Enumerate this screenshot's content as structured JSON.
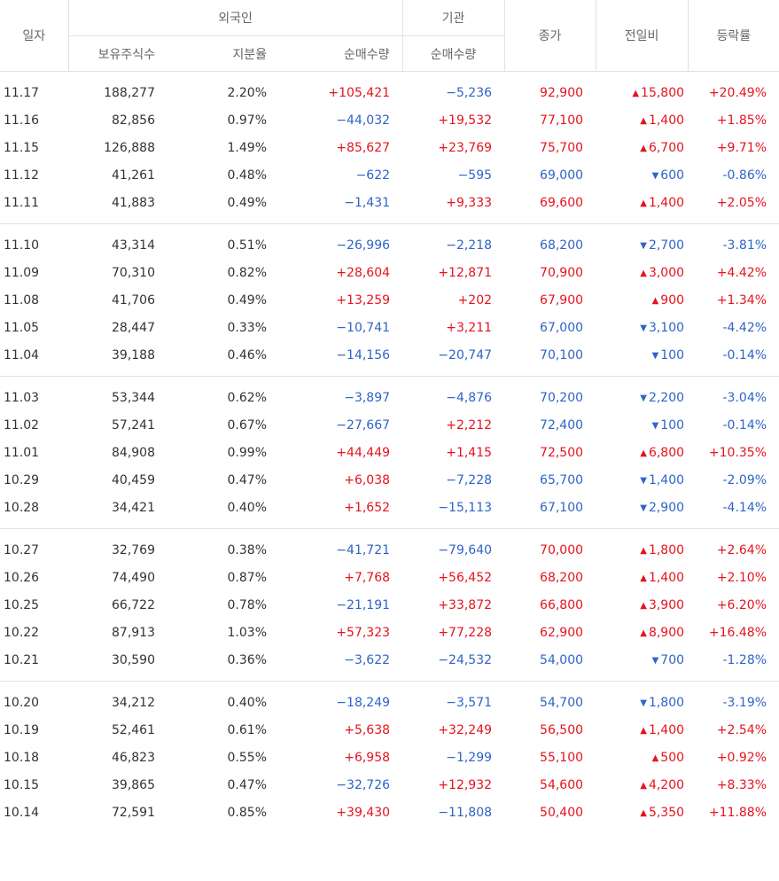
{
  "headers": {
    "date": "일자",
    "foreign": "외국인",
    "institution": "기관",
    "holdings": "보유주식수",
    "ratio": "지분율",
    "foreign_net": "순매수량",
    "inst_net": "순매수량",
    "close": "종가",
    "change": "전일비",
    "rate": "등락률"
  },
  "rows": [
    {
      "date": "11.17",
      "holdings": "188,277",
      "ratio": "2.20%",
      "fnet": "+105,421",
      "inet": "−5,236",
      "close": "92,900",
      "dir": "up",
      "change": "15,800",
      "rate": "+20.49%"
    },
    {
      "date": "11.16",
      "holdings": "82,856",
      "ratio": "0.97%",
      "fnet": "−44,032",
      "inet": "+19,532",
      "close": "77,100",
      "dir": "up",
      "change": "1,400",
      "rate": "+1.85%"
    },
    {
      "date": "11.15",
      "holdings": "126,888",
      "ratio": "1.49%",
      "fnet": "+85,627",
      "inet": "+23,769",
      "close": "75,700",
      "dir": "up",
      "change": "6,700",
      "rate": "+9.71%"
    },
    {
      "date": "11.12",
      "holdings": "41,261",
      "ratio": "0.48%",
      "fnet": "−622",
      "inet": "−595",
      "close": "69,000",
      "dir": "down",
      "change": "600",
      "rate": "-0.86%"
    },
    {
      "date": "11.11",
      "holdings": "41,883",
      "ratio": "0.49%",
      "fnet": "−1,431",
      "inet": "+9,333",
      "close": "69,600",
      "dir": "up",
      "change": "1,400",
      "rate": "+2.05%"
    },
    {
      "date": "11.10",
      "holdings": "43,314",
      "ratio": "0.51%",
      "fnet": "−26,996",
      "inet": "−2,218",
      "close": "68,200",
      "dir": "down",
      "change": "2,700",
      "rate": "-3.81%"
    },
    {
      "date": "11.09",
      "holdings": "70,310",
      "ratio": "0.82%",
      "fnet": "+28,604",
      "inet": "+12,871",
      "close": "70,900",
      "dir": "up",
      "change": "3,000",
      "rate": "+4.42%"
    },
    {
      "date": "11.08",
      "holdings": "41,706",
      "ratio": "0.49%",
      "fnet": "+13,259",
      "inet": "+202",
      "close": "67,900",
      "dir": "up",
      "change": "900",
      "rate": "+1.34%"
    },
    {
      "date": "11.05",
      "holdings": "28,447",
      "ratio": "0.33%",
      "fnet": "−10,741",
      "inet": "+3,211",
      "close": "67,000",
      "dir": "down",
      "change": "3,100",
      "rate": "-4.42%"
    },
    {
      "date": "11.04",
      "holdings": "39,188",
      "ratio": "0.46%",
      "fnet": "−14,156",
      "inet": "−20,747",
      "close": "70,100",
      "dir": "down",
      "change": "100",
      "rate": "-0.14%"
    },
    {
      "date": "11.03",
      "holdings": "53,344",
      "ratio": "0.62%",
      "fnet": "−3,897",
      "inet": "−4,876",
      "close": "70,200",
      "dir": "down",
      "change": "2,200",
      "rate": "-3.04%"
    },
    {
      "date": "11.02",
      "holdings": "57,241",
      "ratio": "0.67%",
      "fnet": "−27,667",
      "inet": "+2,212",
      "close": "72,400",
      "dir": "down",
      "change": "100",
      "rate": "-0.14%"
    },
    {
      "date": "11.01",
      "holdings": "84,908",
      "ratio": "0.99%",
      "fnet": "+44,449",
      "inet": "+1,415",
      "close": "72,500",
      "dir": "up",
      "change": "6,800",
      "rate": "+10.35%"
    },
    {
      "date": "10.29",
      "holdings": "40,459",
      "ratio": "0.47%",
      "fnet": "+6,038",
      "inet": "−7,228",
      "close": "65,700",
      "dir": "down",
      "change": "1,400",
      "rate": "-2.09%"
    },
    {
      "date": "10.28",
      "holdings": "34,421",
      "ratio": "0.40%",
      "fnet": "+1,652",
      "inet": "−15,113",
      "close": "67,100",
      "dir": "down",
      "change": "2,900",
      "rate": "-4.14%"
    },
    {
      "date": "10.27",
      "holdings": "32,769",
      "ratio": "0.38%",
      "fnet": "−41,721",
      "inet": "−79,640",
      "close": "70,000",
      "dir": "up",
      "change": "1,800",
      "rate": "+2.64%"
    },
    {
      "date": "10.26",
      "holdings": "74,490",
      "ratio": "0.87%",
      "fnet": "+7,768",
      "inet": "+56,452",
      "close": "68,200",
      "dir": "up",
      "change": "1,400",
      "rate": "+2.10%"
    },
    {
      "date": "10.25",
      "holdings": "66,722",
      "ratio": "0.78%",
      "fnet": "−21,191",
      "inet": "+33,872",
      "close": "66,800",
      "dir": "up",
      "change": "3,900",
      "rate": "+6.20%"
    },
    {
      "date": "10.22",
      "holdings": "87,913",
      "ratio": "1.03%",
      "fnet": "+57,323",
      "inet": "+77,228",
      "close": "62,900",
      "dir": "up",
      "change": "8,900",
      "rate": "+16.48%"
    },
    {
      "date": "10.21",
      "holdings": "30,590",
      "ratio": "0.36%",
      "fnet": "−3,622",
      "inet": "−24,532",
      "close": "54,000",
      "dir": "down",
      "change": "700",
      "rate": "-1.28%"
    },
    {
      "date": "10.20",
      "holdings": "34,212",
      "ratio": "0.40%",
      "fnet": "−18,249",
      "inet": "−3,571",
      "close": "54,700",
      "dir": "down",
      "change": "1,800",
      "rate": "-3.19%"
    },
    {
      "date": "10.19",
      "holdings": "52,461",
      "ratio": "0.61%",
      "fnet": "+5,638",
      "inet": "+32,249",
      "close": "56,500",
      "dir": "up",
      "change": "1,400",
      "rate": "+2.54%"
    },
    {
      "date": "10.18",
      "holdings": "46,823",
      "ratio": "0.55%",
      "fnet": "+6,958",
      "inet": "−1,299",
      "close": "55,100",
      "dir": "up",
      "change": "500",
      "rate": "+0.92%"
    },
    {
      "date": "10.15",
      "holdings": "39,865",
      "ratio": "0.47%",
      "fnet": "−32,726",
      "inet": "+12,932",
      "close": "54,600",
      "dir": "up",
      "change": "4,200",
      "rate": "+8.33%"
    },
    {
      "date": "10.14",
      "holdings": "72,591",
      "ratio": "0.85%",
      "fnet": "+39,430",
      "inet": "−11,808",
      "close": "50,400",
      "dir": "up",
      "change": "5,350",
      "rate": "+11.88%"
    }
  ],
  "colors": {
    "up": "#e4141e",
    "down": "#2e64c8"
  },
  "icons": {
    "up": "triangle-up-icon",
    "down": "triangle-down-icon"
  }
}
